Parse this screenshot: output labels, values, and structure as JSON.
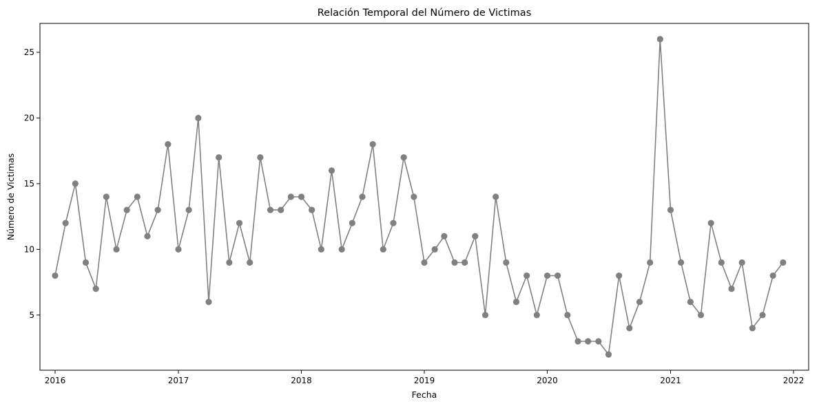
{
  "chart_data": {
    "type": "line",
    "title": "Relación Temporal del Número de Victimas",
    "xlabel": "Fecha",
    "ylabel": "Número de Victimas",
    "x_ticks": [
      "2016",
      "2017",
      "2018",
      "2019",
      "2020",
      "2021",
      "2022"
    ],
    "y_ticks": [
      5,
      10,
      15,
      20,
      25
    ],
    "xlim": [
      "2015-11-17",
      "2022-02-15"
    ],
    "ylim": [
      0.8,
      27.2
    ],
    "grid": false,
    "legend": "none",
    "line_color": "#808080",
    "series": [
      {
        "x": [
          "2016-01",
          "2016-02",
          "2016-03",
          "2016-04",
          "2016-05",
          "2016-06",
          "2016-07",
          "2016-08",
          "2016-09",
          "2016-10",
          "2016-11",
          "2016-12",
          "2017-01",
          "2017-02",
          "2017-03",
          "2017-04",
          "2017-05",
          "2017-06",
          "2017-07",
          "2017-08",
          "2017-09",
          "2017-10",
          "2017-11",
          "2017-12",
          "2018-01",
          "2018-02",
          "2018-03",
          "2018-04",
          "2018-05",
          "2018-06",
          "2018-07",
          "2018-08",
          "2018-09",
          "2018-10",
          "2018-11",
          "2018-12",
          "2019-01",
          "2019-02",
          "2019-03",
          "2019-04",
          "2019-05",
          "2019-06",
          "2019-07",
          "2019-08",
          "2019-09",
          "2019-10",
          "2019-11",
          "2019-12",
          "2020-01",
          "2020-02",
          "2020-03",
          "2020-04",
          "2020-05",
          "2020-06",
          "2020-07",
          "2020-08",
          "2020-09",
          "2020-10",
          "2020-11",
          "2020-12",
          "2021-01",
          "2021-02",
          "2021-03",
          "2021-04",
          "2021-05",
          "2021-06",
          "2021-07",
          "2021-08",
          "2021-09",
          "2021-10",
          "2021-11",
          "2021-12"
        ],
        "values": [
          8,
          12,
          15,
          9,
          7,
          14,
          10,
          13,
          14,
          11,
          13,
          18,
          10,
          13,
          20,
          6,
          17,
          9,
          12,
          9,
          17,
          13,
          13,
          14,
          14,
          13,
          10,
          16,
          10,
          12,
          14,
          18,
          10,
          12,
          17,
          14,
          9,
          10,
          11,
          9,
          9,
          11,
          5,
          14,
          9,
          6,
          8,
          5,
          8,
          8,
          5,
          3,
          3,
          3,
          2,
          8,
          4,
          6,
          9,
          26,
          13,
          9,
          6,
          5,
          12,
          9,
          7,
          9,
          4,
          5,
          8,
          9
        ]
      }
    ]
  }
}
